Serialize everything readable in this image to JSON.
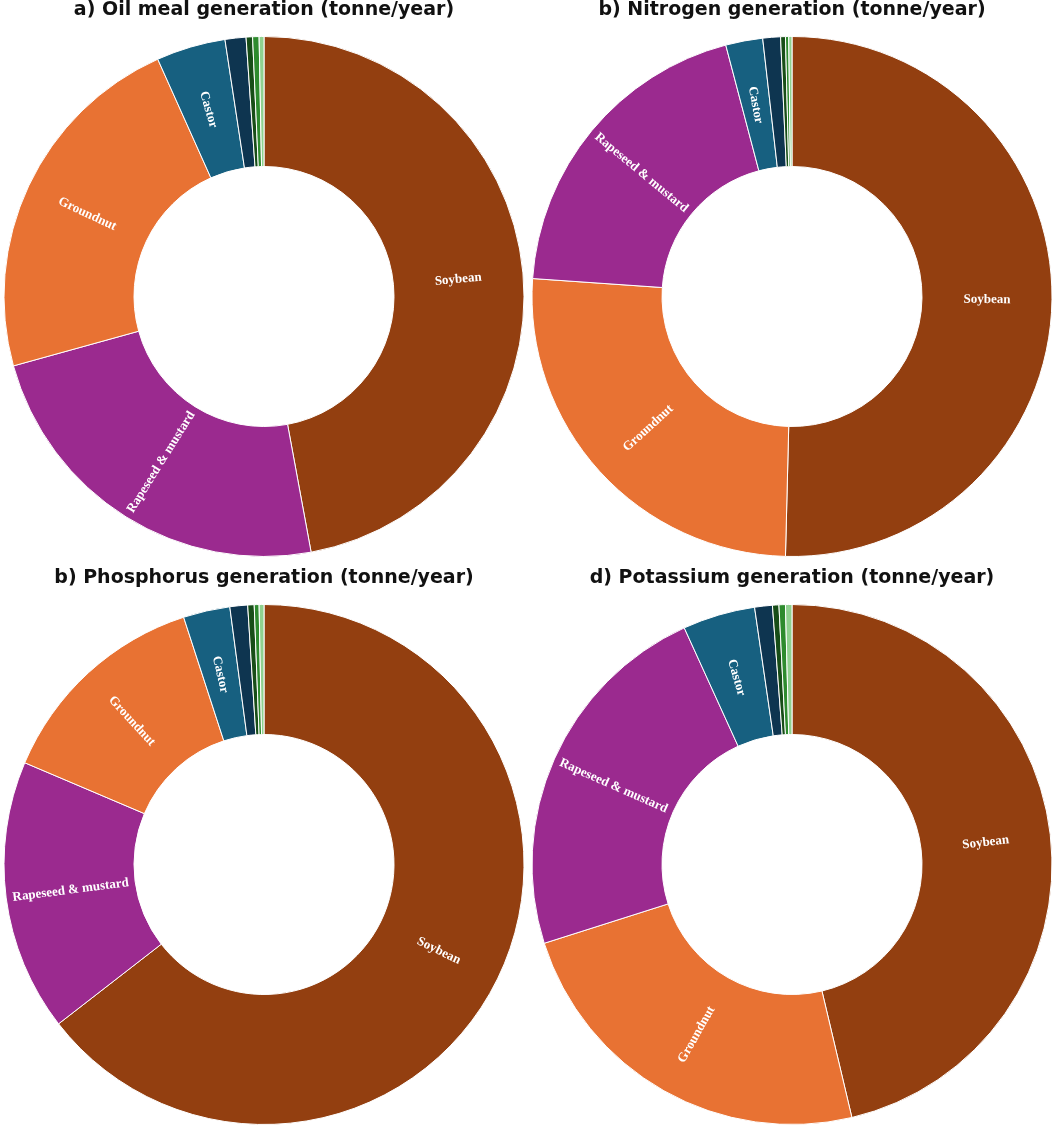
{
  "chart_data": [
    {
      "type": "donut",
      "title": "a) Oil meal generation (tonne/year)",
      "categories": [
        "Soybean",
        "Rapeseed & mustard",
        "Groundnut",
        "Castor",
        null,
        null,
        null,
        null
      ],
      "values": [
        47.1,
        23.6,
        22.6,
        4.3,
        1.3,
        0.4,
        0.4,
        0.3
      ],
      "colors": [
        "#933f10",
        "#9b2a8f",
        "#e87233",
        "#176080",
        "#0e3550",
        "#174d17",
        "#2e8b2e",
        "#8fd18f"
      ]
    },
    {
      "type": "donut",
      "title": "b) Nitrogen generation (tonne/year)",
      "categories": [
        "Soybean",
        "Groundnut",
        "Rapeseed & mustard",
        "Castor",
        null,
        null,
        null,
        null
      ],
      "values": [
        50.4,
        25.7,
        19.8,
        2.3,
        1.1,
        0.3,
        0.2,
        0.2
      ],
      "colors": [
        "#933f10",
        "#e87233",
        "#9b2a8f",
        "#176080",
        "#0e3550",
        "#174d17",
        "#2e8b2e",
        "#8fd18f"
      ]
    },
    {
      "type": "donut",
      "title": "b) Phosphorus generation (tonne/year)",
      "categories": [
        "Soybean",
        "Rapeseed & mustard",
        "Groundnut",
        "Castor",
        null,
        null,
        null,
        null
      ],
      "values": [
        64.5,
        16.9,
        13.6,
        2.9,
        1.1,
        0.4,
        0.3,
        0.3
      ],
      "colors": [
        "#933f10",
        "#9b2a8f",
        "#e87233",
        "#176080",
        "#0e3550",
        "#174d17",
        "#2e8b2e",
        "#8fd18f"
      ]
    },
    {
      "type": "donut",
      "title": "d) Potassium generation (tonne/year)",
      "categories": [
        "Soybean",
        "Groundnut",
        "Rapeseed & mustard",
        "Castor",
        null,
        null,
        null,
        null
      ],
      "values": [
        46.3,
        23.8,
        23.1,
        4.5,
        1.1,
        0.4,
        0.4,
        0.4
      ],
      "colors": [
        "#933f10",
        "#e87233",
        "#9b2a8f",
        "#176080",
        "#0e3550",
        "#174d17",
        "#2e8b2e",
        "#8fd18f"
      ]
    }
  ]
}
